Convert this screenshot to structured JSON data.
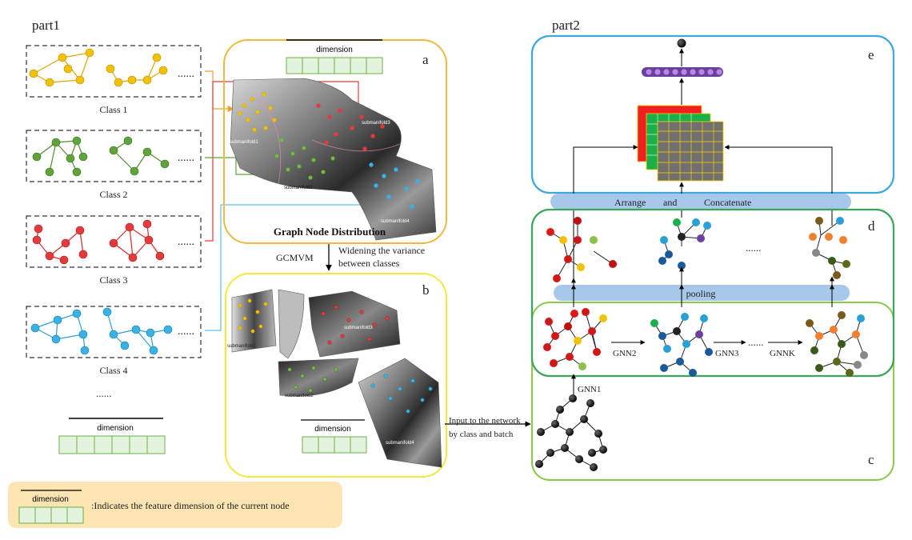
{
  "part1": {
    "title": "part1",
    "classes": [
      {
        "label": "Class 1",
        "color": "#f2c200",
        "edge": "#e0a800",
        "dots": "......"
      },
      {
        "label": "Class 2",
        "color": "#5fa33a",
        "edge": "#4e8e2e",
        "dots": "......"
      },
      {
        "label": "Class 3",
        "color": "#e8393a",
        "edge": "#d92a2a",
        "dots": "......"
      },
      {
        "label": "Class 4",
        "color": "#38b3e6",
        "edge": "#2aa0d8",
        "dots": "......"
      }
    ],
    "more": "......",
    "dimension_label": "dimension"
  },
  "panel_a": {
    "letter": "a",
    "dimension_label": "dimension",
    "title": "Graph Node Distribution",
    "submanifolds": [
      "submanifold1",
      "submanifold2",
      "submanifold3",
      "submanifold4"
    ],
    "border_color": "#f0b93c"
  },
  "transition": {
    "method": "GCMVM",
    "desc_line1": "Widening the variance",
    "desc_line2": "between classes"
  },
  "panel_b": {
    "letter": "b",
    "dimension_label": "dimension",
    "submanifolds": [
      "submanifold1",
      "submanifold2",
      "submanifold3",
      "submanifold4"
    ],
    "border_color": "#f2ea3a"
  },
  "input_note": {
    "line1": "Input to the network",
    "line2": "by class and batch"
  },
  "legend": {
    "dimension_label": "dimension",
    "text": ":Indicates the feature dimension of the current node",
    "bg": "#fde5b3"
  },
  "part2": {
    "title": "part2",
    "panel_e": {
      "letter": "e",
      "border_color": "#3ba9e0"
    },
    "concat_bar": {
      "left": "Arrange",
      "mid": "and",
      "right": "Concatenate"
    },
    "panel_d": {
      "letter": "d",
      "dots": "......",
      "border_color": "#3aa65a"
    },
    "pooling_label": "pooling",
    "panel_c": {
      "letter": "c",
      "border_color": "#8cc84a"
    },
    "gnn": [
      "GNN1",
      "GNN2",
      "GNN3",
      "GNNK"
    ],
    "gnn_dots": "......",
    "bar_color": "#a7c8ea"
  }
}
